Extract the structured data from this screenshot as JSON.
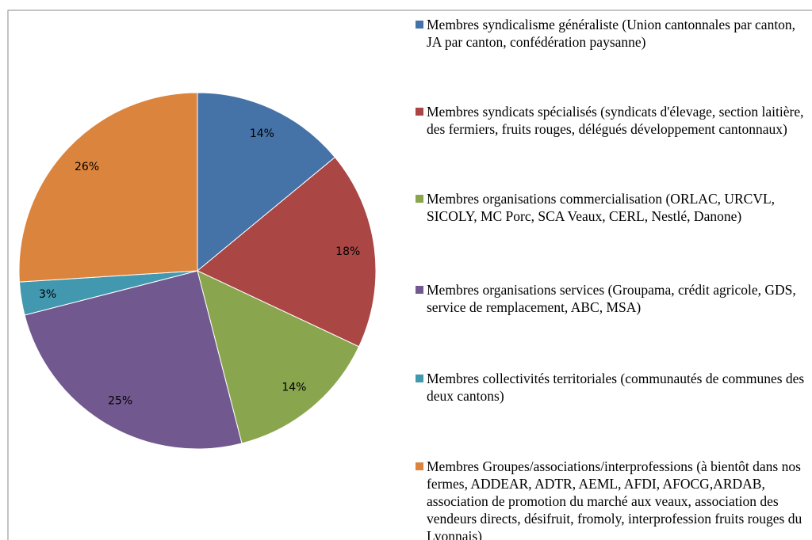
{
  "chart_data": {
    "type": "pie",
    "categories": [
      "Membres syndicalisme généraliste (Union cantonnales par canton, JA par canton, confédération paysanne)",
      "Membres syndicats spécialisés (syndicats d'élevage,  section laitière, des fermiers, fruits rouges, délégués développement cantonnaux)",
      "Membres organisations commercialisation (ORLAC, URCVL, SICOLY, MC Porc, SCA Veaux, CERL, Nestlé, Danone)",
      "Membres organisations services (Groupama, crédit agricole, GDS, service de remplacement, ABC, MSA)",
      "Membres collectivités territoriales (communautés de communes des deux cantons)",
      "Membres Groupes/associations/interprofessions (à bientôt dans nos fermes, ADDEAR, ADTR, AEML, AFDI, AFOCG,ARDAB, association de promotion du marché aux veaux, association des vendeurs directs, désifruit, fromoly, interprofession fruits rouges du Lyonnais)"
    ],
    "values": [
      14,
      18,
      14,
      25,
      3,
      26
    ],
    "value_labels": [
      "14%",
      "18%",
      "14%",
      "25%",
      "3%",
      "26%"
    ],
    "colors": [
      "#4572a7",
      "#aa4643",
      "#89a54e",
      "#71588f",
      "#4198af",
      "#db843d"
    ],
    "legend": "right"
  }
}
